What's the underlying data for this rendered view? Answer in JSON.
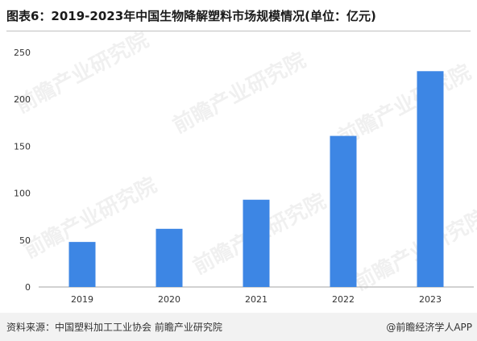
{
  "title": "图表6：2019-2023年中国生物降解塑料市场规模情况(单位：亿元)",
  "source": "资料来源：中国塑料加工工业协会 前瞻产业研究院",
  "brand": "@前瞻经济学人APP",
  "watermark": "前瞻产业研究院",
  "colors": {
    "bar": "#3d86e4",
    "axis": "#a6a6a6"
  },
  "chart_data": {
    "type": "bar",
    "categories": [
      "2019",
      "2020",
      "2021",
      "2022",
      "2023"
    ],
    "values": [
      48,
      62,
      93,
      161,
      230
    ],
    "ylim": [
      0,
      250
    ],
    "yticks": [
      0,
      50,
      100,
      150,
      200,
      250
    ],
    "grid": false,
    "legend": "none"
  }
}
